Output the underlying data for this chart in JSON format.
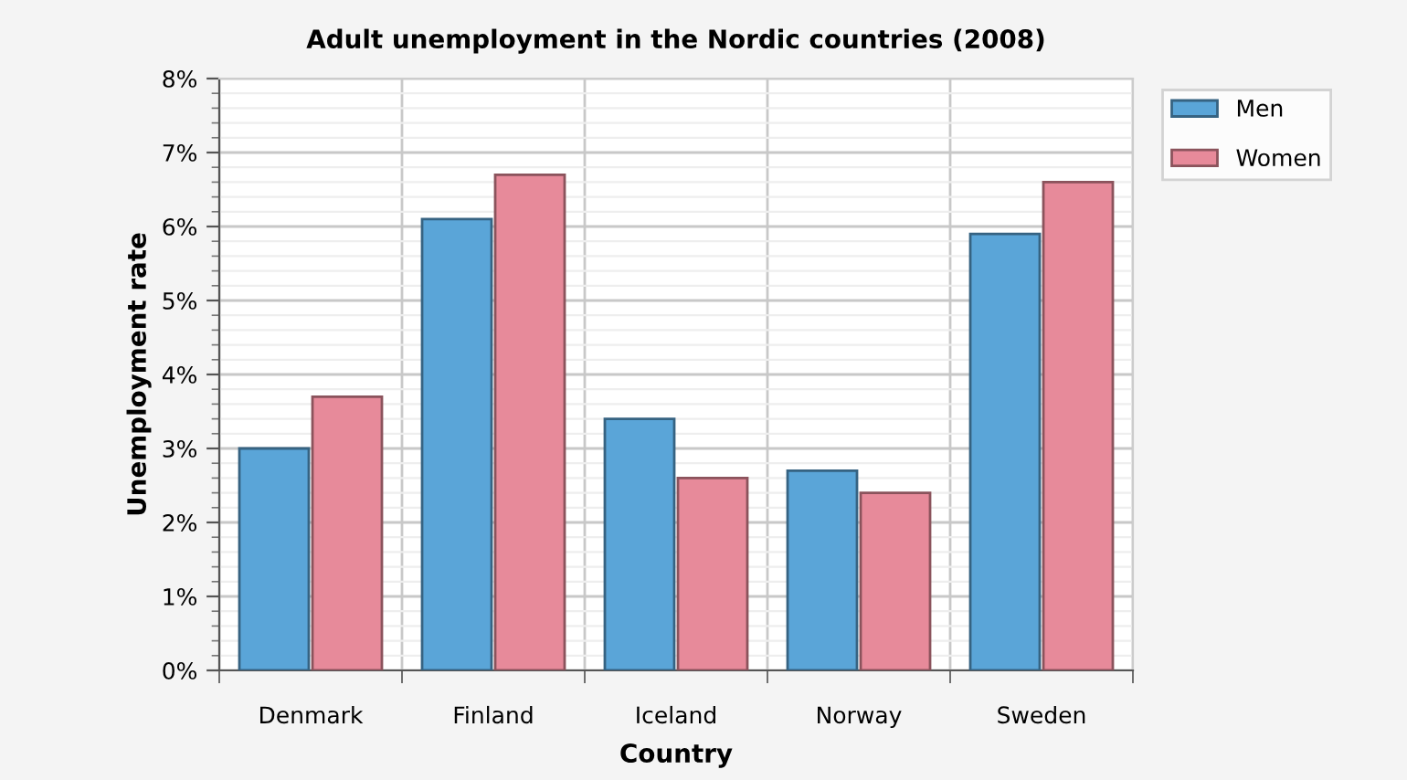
{
  "chart_data": {
    "type": "bar",
    "title": "Adult unemployment in the Nordic countries (2008)",
    "xlabel": "Country",
    "ylabel": "Unemployment rate",
    "categories": [
      "Denmark",
      "Finland",
      "Iceland",
      "Norway",
      "Sweden"
    ],
    "series": [
      {
        "name": "Men",
        "color": "#5aa5d8",
        "values": [
          3.0,
          6.1,
          3.4,
          2.7,
          5.9
        ]
      },
      {
        "name": "Women",
        "color": "#e78a9a",
        "values": [
          3.7,
          6.7,
          2.6,
          2.4,
          6.6
        ]
      }
    ],
    "ylim": [
      0,
      8
    ],
    "yticks": [
      {
        "value": 0,
        "label": "0%"
      },
      {
        "value": 1,
        "label": "1%"
      },
      {
        "value": 2,
        "label": "2%"
      },
      {
        "value": 3,
        "label": "3%"
      },
      {
        "value": 4,
        "label": "4%"
      },
      {
        "value": 5,
        "label": "5%"
      },
      {
        "value": 6,
        "label": "6%"
      },
      {
        "value": 7,
        "label": "7%"
      },
      {
        "value": 8,
        "label": "8%"
      }
    ],
    "grid": true,
    "legend": "top right"
  }
}
